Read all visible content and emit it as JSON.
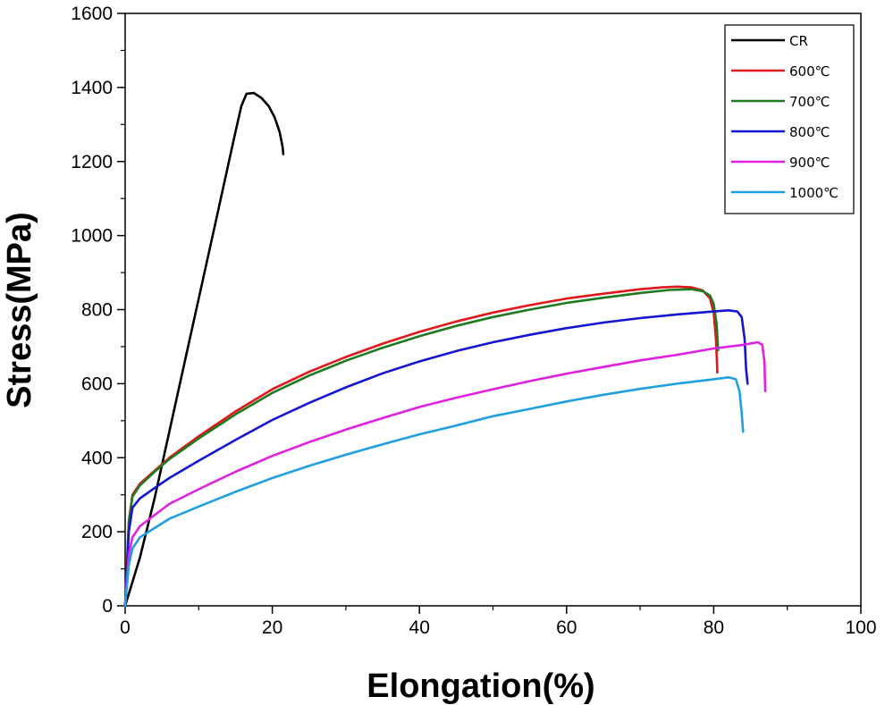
{
  "chart_data": {
    "type": "line",
    "xlabel": "Elongation(%)",
    "ylabel": "Stress(MPa)",
    "xlim": [
      0,
      100
    ],
    "ylim": [
      0,
      1600
    ],
    "xticks": [
      0,
      20,
      40,
      60,
      80,
      100
    ],
    "yticks": [
      0,
      200,
      400,
      600,
      800,
      1000,
      1200,
      1400,
      1600
    ],
    "grid": false,
    "legend_position": "top-right",
    "series": [
      {
        "name": "CR",
        "color": "#000000",
        "points": [
          [
            0,
            0
          ],
          [
            2,
            130
          ],
          [
            4,
            290
          ],
          [
            6,
            470
          ],
          [
            8,
            650
          ],
          [
            10,
            830
          ],
          [
            12,
            1010
          ],
          [
            14,
            1190
          ],
          [
            15,
            1280
          ],
          [
            15.8,
            1350
          ],
          [
            16.5,
            1383
          ],
          [
            17.5,
            1385
          ],
          [
            18.5,
            1372
          ],
          [
            19.5,
            1350
          ],
          [
            20.3,
            1320
          ],
          [
            21,
            1280
          ],
          [
            21.4,
            1240
          ],
          [
            21.5,
            1220
          ]
        ]
      },
      {
        "name": "600℃",
        "color": "#e0181b",
        "points": [
          [
            0,
            0
          ],
          [
            0.5,
            230
          ],
          [
            1,
            300
          ],
          [
            2,
            330
          ],
          [
            4,
            365
          ],
          [
            6,
            400
          ],
          [
            10,
            458
          ],
          [
            15,
            525
          ],
          [
            20,
            585
          ],
          [
            25,
            632
          ],
          [
            30,
            672
          ],
          [
            35,
            708
          ],
          [
            40,
            740
          ],
          [
            45,
            768
          ],
          [
            50,
            792
          ],
          [
            55,
            812
          ],
          [
            60,
            830
          ],
          [
            65,
            843
          ],
          [
            70,
            855
          ],
          [
            73,
            860
          ],
          [
            75,
            862
          ],
          [
            77,
            860
          ],
          [
            78.5,
            852
          ],
          [
            79.5,
            830
          ],
          [
            80,
            790
          ],
          [
            80.3,
            720
          ],
          [
            80.5,
            630
          ]
        ]
      },
      {
        "name": "700℃",
        "color": "#1e7a1e",
        "points": [
          [
            0,
            0
          ],
          [
            0.5,
            225
          ],
          [
            1,
            295
          ],
          [
            2,
            325
          ],
          [
            4,
            362
          ],
          [
            6,
            396
          ],
          [
            10,
            452
          ],
          [
            15,
            517
          ],
          [
            20,
            575
          ],
          [
            25,
            622
          ],
          [
            30,
            662
          ],
          [
            35,
            697
          ],
          [
            40,
            728
          ],
          [
            45,
            756
          ],
          [
            50,
            780
          ],
          [
            55,
            800
          ],
          [
            60,
            818
          ],
          [
            65,
            832
          ],
          [
            70,
            845
          ],
          [
            74,
            853
          ],
          [
            77,
            855
          ],
          [
            78.5,
            850
          ],
          [
            79.5,
            838
          ],
          [
            80,
            815
          ],
          [
            80.4,
            760
          ],
          [
            80.6,
            690
          ]
        ]
      },
      {
        "name": "800℃",
        "color": "#1414d2",
        "points": [
          [
            0,
            0
          ],
          [
            0.5,
            200
          ],
          [
            1,
            265
          ],
          [
            2,
            290
          ],
          [
            4,
            318
          ],
          [
            6,
            345
          ],
          [
            10,
            392
          ],
          [
            15,
            448
          ],
          [
            20,
            502
          ],
          [
            25,
            548
          ],
          [
            30,
            590
          ],
          [
            35,
            628
          ],
          [
            40,
            660
          ],
          [
            45,
            688
          ],
          [
            50,
            712
          ],
          [
            55,
            732
          ],
          [
            60,
            750
          ],
          [
            65,
            765
          ],
          [
            70,
            777
          ],
          [
            75,
            787
          ],
          [
            80,
            795
          ],
          [
            82,
            798
          ],
          [
            83.2,
            795
          ],
          [
            83.8,
            780
          ],
          [
            84.2,
            720
          ],
          [
            84.4,
            640
          ],
          [
            84.6,
            600
          ]
        ]
      },
      {
        "name": "900℃",
        "color": "#e020e0",
        "points": [
          [
            0,
            0
          ],
          [
            0.5,
            140
          ],
          [
            1,
            185
          ],
          [
            2,
            215
          ],
          [
            4,
            245
          ],
          [
            6,
            275
          ],
          [
            10,
            315
          ],
          [
            15,
            362
          ],
          [
            20,
            405
          ],
          [
            25,
            442
          ],
          [
            30,
            476
          ],
          [
            35,
            507
          ],
          [
            40,
            537
          ],
          [
            45,
            562
          ],
          [
            50,
            585
          ],
          [
            55,
            607
          ],
          [
            60,
            627
          ],
          [
            65,
            645
          ],
          [
            70,
            663
          ],
          [
            75,
            678
          ],
          [
            80,
            695
          ],
          [
            84,
            705
          ],
          [
            86,
            712
          ],
          [
            86.6,
            705
          ],
          [
            86.9,
            660
          ],
          [
            87,
            580
          ]
        ]
      },
      {
        "name": "1000℃",
        "color": "#1ea0e0",
        "points": [
          [
            0,
            0
          ],
          [
            0.5,
            110
          ],
          [
            1,
            155
          ],
          [
            2,
            185
          ],
          [
            4,
            210
          ],
          [
            6,
            235
          ],
          [
            10,
            268
          ],
          [
            15,
            308
          ],
          [
            20,
            345
          ],
          [
            25,
            378
          ],
          [
            30,
            408
          ],
          [
            35,
            436
          ],
          [
            40,
            463
          ],
          [
            45,
            487
          ],
          [
            50,
            512
          ],
          [
            55,
            532
          ],
          [
            60,
            552
          ],
          [
            65,
            570
          ],
          [
            70,
            586
          ],
          [
            75,
            600
          ],
          [
            80,
            612
          ],
          [
            82,
            617
          ],
          [
            83,
            612
          ],
          [
            83.5,
            580
          ],
          [
            83.8,
            520
          ],
          [
            84,
            470
          ]
        ]
      }
    ]
  }
}
